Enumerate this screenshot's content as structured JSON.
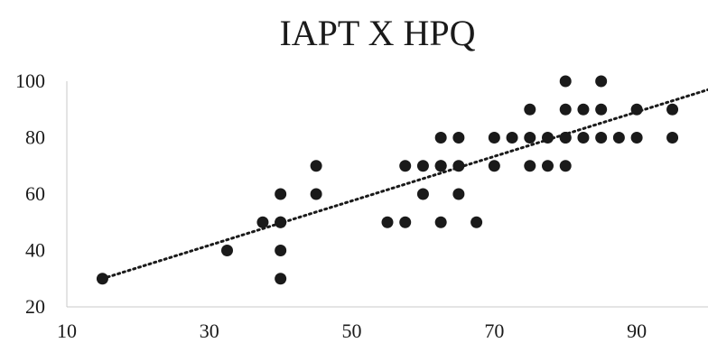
{
  "chart_data": {
    "type": "scatter",
    "title": "IAPT X HPQ",
    "xlabel": "",
    "ylabel": "",
    "xlim": [
      10,
      100
    ],
    "ylim": [
      20,
      100
    ],
    "xticks": [
      "10",
      "30",
      "50",
      "70",
      "90"
    ],
    "yticks": [
      "20",
      "40",
      "60",
      "80",
      "100"
    ],
    "grid": false,
    "legend": "none",
    "point_color": "#1a1a1a",
    "trendline": {
      "type": "linear",
      "style": "dotted",
      "x": [
        15,
        100
      ],
      "y": [
        30,
        97
      ]
    },
    "x": [
      15,
      32.5,
      37.5,
      40,
      40,
      40,
      40,
      40,
      45,
      45,
      55,
      57.5,
      57.5,
      60,
      60,
      62.5,
      62.5,
      62.5,
      62.5,
      65,
      65,
      65,
      67.5,
      70,
      70,
      72.5,
      75,
      75,
      75,
      77.5,
      77.5,
      80,
      80,
      80,
      80,
      80,
      82.5,
      82.5,
      85,
      85,
      85,
      87.5,
      90,
      90,
      95,
      95
    ],
    "y": [
      30,
      40,
      50,
      60,
      50,
      40,
      30,
      50,
      70,
      60,
      50,
      70,
      50,
      70,
      60,
      80,
      70,
      70,
      50,
      80,
      70,
      60,
      50,
      80,
      70,
      80,
      90,
      80,
      70,
      80,
      70,
      100,
      90,
      80,
      80,
      70,
      90,
      80,
      100,
      90,
      80,
      80,
      90,
      80,
      90,
      80
    ]
  }
}
